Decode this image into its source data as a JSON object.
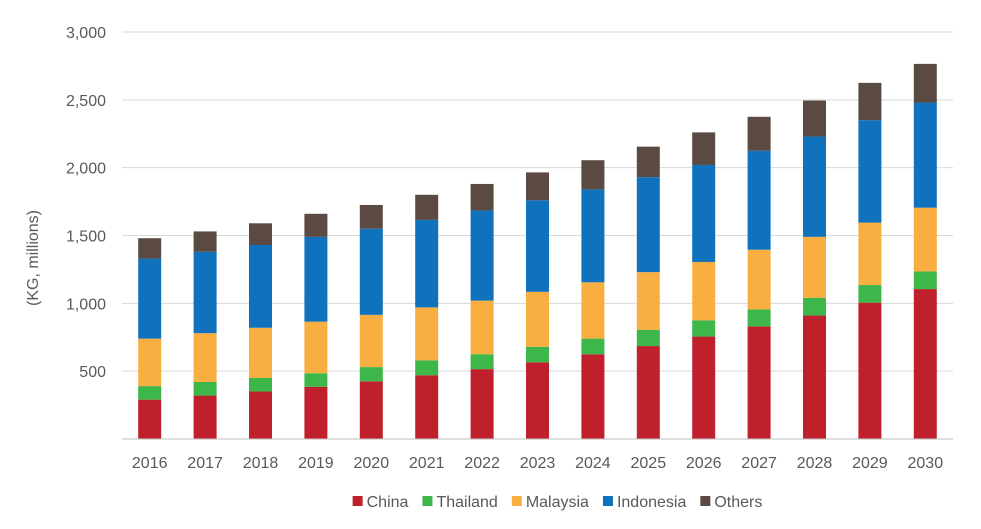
{
  "chart_data": {
    "type": "bar",
    "stacked": true,
    "ylabel": "(KG, millions)",
    "xlabel": "",
    "ylim": [
      0,
      3000
    ],
    "yticks": [
      500,
      1000,
      1500,
      2000,
      2500,
      3000
    ],
    "ytick_labels": [
      "500",
      "1,000",
      "1,500",
      "2,000",
      "2,500",
      "3,000"
    ],
    "grid": true,
    "legend_position": "bottom",
    "categories": [
      "2016",
      "2017",
      "2018",
      "2019",
      "2020",
      "2021",
      "2022",
      "2023",
      "2024",
      "2025",
      "2026",
      "2027",
      "2028",
      "2029",
      "2030"
    ],
    "series": [
      {
        "name": "China",
        "color": "#C0202B",
        "values": [
          290,
          320,
          350,
          385,
          425,
          470,
          515,
          565,
          625,
          685,
          755,
          830,
          910,
          1005,
          1105
        ]
      },
      {
        "name": "Thailand",
        "color": "#3DB64A",
        "values": [
          100,
          100,
          100,
          100,
          105,
          110,
          110,
          115,
          115,
          120,
          120,
          125,
          130,
          130,
          130
        ]
      },
      {
        "name": "Malaysia",
        "color": "#F9AE42",
        "values": [
          350,
          360,
          370,
          380,
          385,
          390,
          395,
          405,
          415,
          425,
          430,
          440,
          450,
          460,
          470
        ]
      },
      {
        "name": "Indonesia",
        "color": "#1071BC",
        "values": [
          590,
          600,
          610,
          625,
          635,
          645,
          665,
          675,
          685,
          700,
          715,
          730,
          740,
          755,
          775
        ]
      },
      {
        "name": "Others",
        "color": "#5A4A41",
        "values": [
          150,
          150,
          160,
          170,
          175,
          185,
          195,
          205,
          215,
          225,
          240,
          250,
          265,
          275,
          285
        ]
      }
    ]
  }
}
